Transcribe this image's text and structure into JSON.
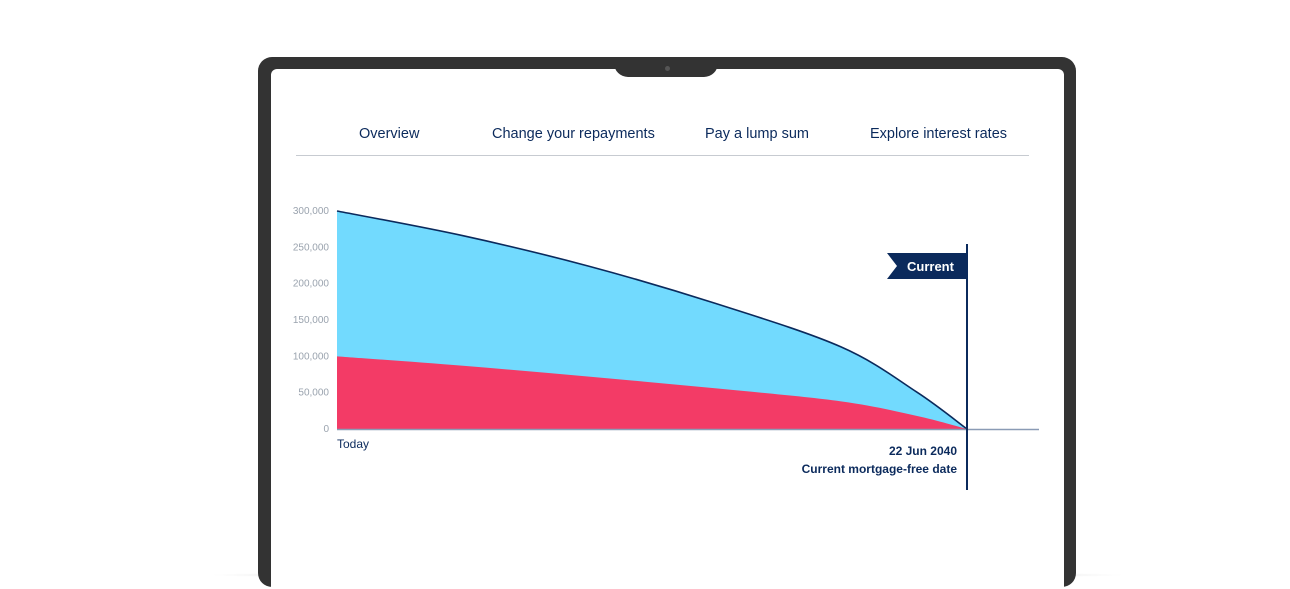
{
  "nav": {
    "tabs": [
      {
        "label": "Overview"
      },
      {
        "label": "Change your repayments"
      },
      {
        "label": "Pay a lump sum"
      },
      {
        "label": "Explore interest rates"
      }
    ]
  },
  "chart_data": {
    "type": "area",
    "y_ticks": [
      "0",
      "50,000",
      "100,000",
      "150,000",
      "200,000",
      "250,000",
      "300,000"
    ],
    "ylim": [
      0,
      300000
    ],
    "x_start_label": "Today",
    "x_end_label": "22 Jun 2040",
    "x_end_caption": "Current mortgage-free date",
    "marker_label": "Current",
    "series": [
      {
        "values": [
          300000,
          266000,
          224000,
          173000,
          113000,
          51000,
          0
        ],
        "color": "#72dafe"
      },
      {
        "values": [
          100000,
          87000,
          72000,
          56000,
          38000,
          18000,
          0
        ],
        "color": "#f33b66"
      }
    ],
    "x_fractions": [
      0,
      0.2,
      0.4,
      0.6,
      0.8,
      0.92,
      1
    ],
    "grid": false,
    "colors": {
      "outline": "#0b2a5c",
      "axis": "#8a9bb5",
      "text": "#0b2a5c"
    }
  }
}
